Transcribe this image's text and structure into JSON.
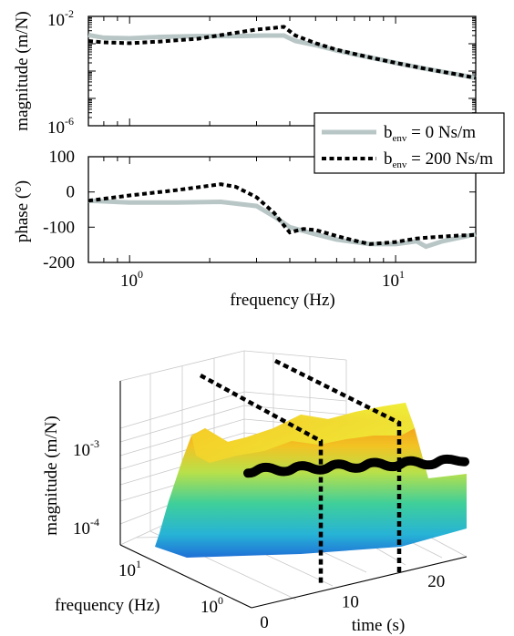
{
  "chart_data": [
    {
      "type": "line",
      "panel": "magnitude",
      "ylabel": "magnitude (m/N)",
      "yscale": "log",
      "xscale": "log",
      "xlim": [
        0.7,
        20
      ],
      "ylim_exp": [
        -6,
        -2
      ],
      "ytick_exps": [
        -2,
        -6
      ],
      "series": [
        {
          "name": "b_env = 0 Ns/m",
          "style": "solid-gray",
          "x": [
            0.7,
            0.8,
            1.0,
            1.3,
            1.8,
            2.5,
            3.2,
            3.8,
            4.2,
            5.0,
            6.0,
            8.0,
            10.0,
            13.0,
            17.0,
            20.0
          ],
          "y": [
            -2.68,
            -2.78,
            -2.8,
            -2.75,
            -2.72,
            -2.72,
            -2.7,
            -2.7,
            -2.9,
            -3.05,
            -3.25,
            -3.5,
            -3.7,
            -3.92,
            -4.12,
            -4.25
          ]
        },
        {
          "name": "b_env = 200 Ns/m",
          "style": "dotted-black",
          "x": [
            0.7,
            0.8,
            1.0,
            1.3,
            1.8,
            2.5,
            3.0,
            3.5,
            3.8,
            4.2,
            5.0,
            6.0,
            8.0,
            10.0,
            13.0,
            17.0,
            20.0
          ],
          "y": [
            -2.9,
            -2.95,
            -2.98,
            -2.92,
            -2.82,
            -2.6,
            -2.48,
            -2.42,
            -2.38,
            -2.7,
            -2.98,
            -3.22,
            -3.5,
            -3.7,
            -3.92,
            -4.12,
            -4.25
          ]
        }
      ]
    },
    {
      "type": "line",
      "panel": "phase",
      "ylabel": "phase (°)",
      "xlabel": "frequency (Hz)",
      "xscale": "log",
      "xlim": [
        0.7,
        20
      ],
      "ylim": [
        -200,
        100
      ],
      "yticks": [
        100,
        0,
        -100,
        -200
      ],
      "xtick_exps": [
        0,
        1
      ],
      "series": [
        {
          "name": "b_env = 0 Ns/m",
          "style": "solid-gray",
          "x": [
            0.7,
            1.0,
            1.5,
            2.2,
            3.0,
            3.5,
            4.0,
            5.0,
            6.0,
            8.0,
            10.0,
            12.0,
            13.0,
            15.0,
            20.0
          ],
          "y": [
            -25,
            -30,
            -30,
            -28,
            -40,
            -70,
            -100,
            -120,
            -135,
            -148,
            -148,
            -140,
            -155,
            -140,
            -120
          ]
        },
        {
          "name": "b_env = 200 Ns/m",
          "style": "dotted-black",
          "x": [
            0.7,
            1.0,
            1.5,
            2.2,
            2.5,
            3.0,
            3.5,
            3.8,
            4.0,
            4.5,
            5.0,
            6.0,
            7.0,
            8.0,
            9.0,
            10.0,
            12.0,
            14.0,
            17.0,
            20.0
          ],
          "y": [
            -25,
            -10,
            5,
            22,
            15,
            -15,
            -60,
            -95,
            -115,
            -105,
            -108,
            -125,
            -138,
            -148,
            -145,
            -142,
            -132,
            -128,
            -124,
            -122
          ]
        }
      ],
      "legend": {
        "location": "right, spanning both panels",
        "entries": [
          {
            "base": "b",
            "sub": "env",
            "rest": " = 0 Ns/m"
          },
          {
            "base": "b",
            "sub": "env",
            "rest": " = 200 Ns/m"
          }
        ]
      }
    },
    {
      "type": "surface3d",
      "zlabel": "magnitude (m/N)",
      "ylabel": "frequency (Hz)",
      "xlabel": "time (s)",
      "zscale": "log",
      "z_range_exp": [
        -4,
        -2.5
      ],
      "ztick_exps": [
        -3,
        -4
      ],
      "ytick_exps": [
        1,
        0
      ],
      "xticks": [
        0,
        10,
        20
      ],
      "x_range": [
        0,
        25
      ],
      "ridge_series": {
        "name": "magnitude ridge over time",
        "t": [
          0,
          2,
          4,
          6,
          8,
          10,
          12,
          14,
          16,
          18,
          20,
          22,
          24
        ],
        "y_exp": [
          -3.3,
          -3.15,
          -3.3,
          -3.15,
          -3.3,
          -3.15,
          -3.3,
          -3.15,
          -3.3,
          -3.15,
          -3.3,
          -3.15,
          -3.25
        ]
      },
      "switch_times": [
        8,
        16
      ]
    }
  ]
}
